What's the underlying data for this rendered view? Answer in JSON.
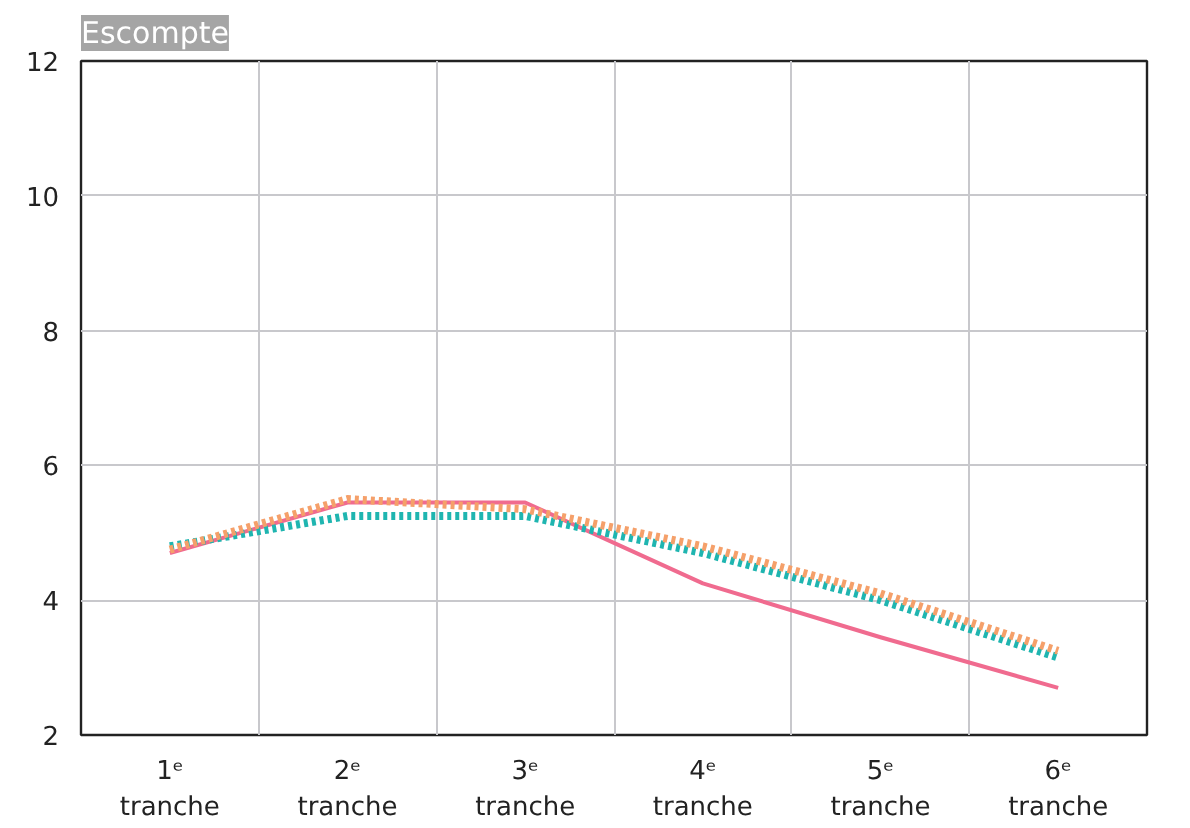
{
  "chart_data": {
    "type": "line",
    "title": "Escompte",
    "categories": [
      "1ᵉ\ntranche",
      "2ᵉ\ntranche",
      "3ᵉ\ntranche",
      "4ᵉ\ntranche",
      "5ᵉ\ntranche",
      "6ᵉ\ntranche"
    ],
    "series": [
      {
        "color": "#f06b8f",
        "line_style": "solid",
        "values": [
          4.7,
          5.45,
          5.45,
          4.25,
          3.45,
          2.7
        ]
      },
      {
        "color": "#1fb5b0",
        "line_style": "dotted",
        "values": [
          4.8,
          5.25,
          5.25,
          4.7,
          4.0,
          3.15
        ]
      },
      {
        "color": "#f5a06a",
        "line_style": "dotted",
        "values": [
          4.75,
          5.5,
          5.35,
          4.8,
          4.1,
          3.25
        ]
      }
    ],
    "ylim": [
      2,
      12
    ],
    "yticks": [
      2,
      4,
      6,
      8,
      10,
      12
    ],
    "grid": true
  }
}
